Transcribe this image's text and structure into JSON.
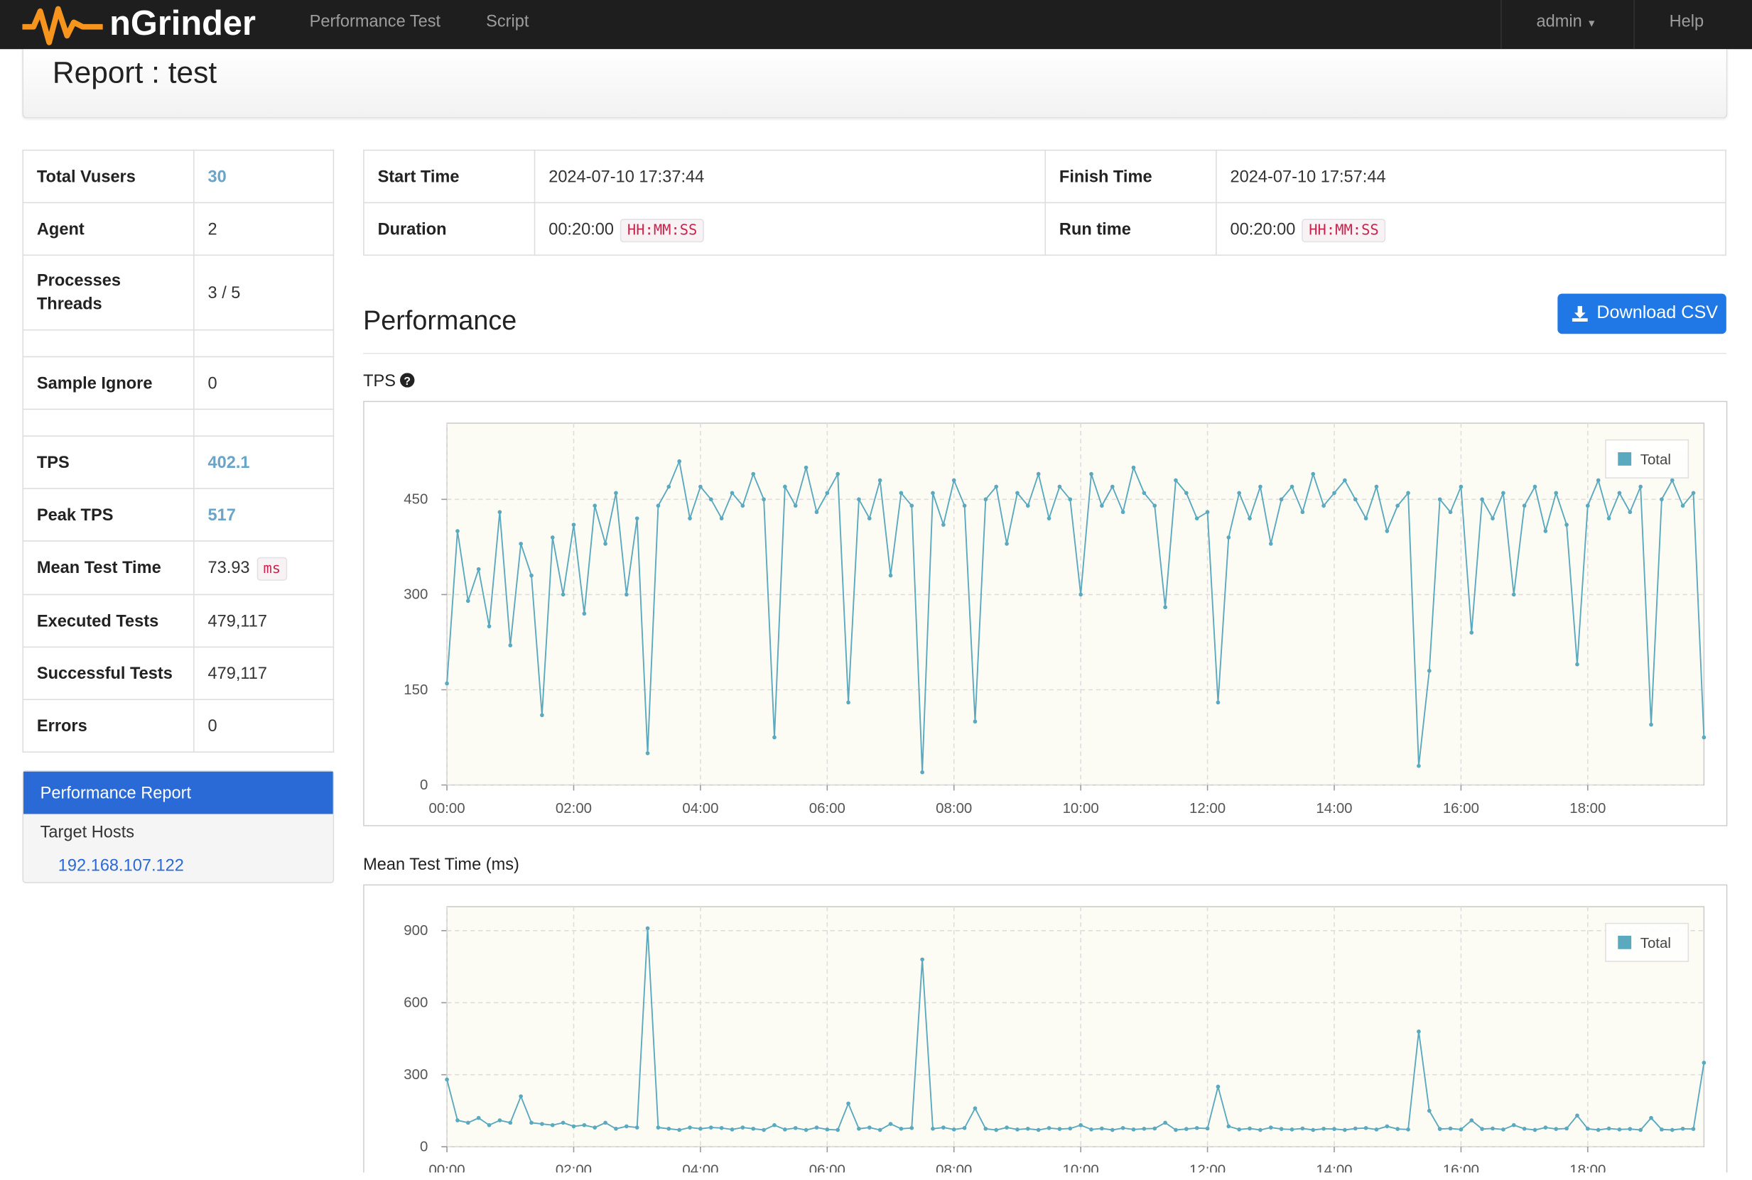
{
  "nav": {
    "brand": "nGrinder",
    "links": [
      "Performance Test",
      "Script"
    ],
    "user": "admin",
    "help": "Help"
  },
  "header": {
    "title": "Report : test"
  },
  "summary": {
    "rows": [
      {
        "label": "Total Vusers",
        "value": "30"
      },
      {
        "label": "Agent",
        "value": "2"
      },
      {
        "label": "Processes",
        "label2": "Threads",
        "value": "3 / 5"
      },
      {
        "label": "Sample Ignore",
        "value": "0"
      },
      {
        "label": "TPS",
        "value": "402.1"
      },
      {
        "label": "Peak TPS",
        "value": "517"
      },
      {
        "label": "Mean Test Time",
        "value": "73.93",
        "unit": "ms"
      },
      {
        "label": "Executed Tests",
        "value": "479,117"
      },
      {
        "label": "Successful Tests",
        "value": "479,117"
      },
      {
        "label": "Errors",
        "value": "0"
      }
    ]
  },
  "menu": {
    "active": "Performance Report",
    "section": "Target Hosts",
    "hosts": [
      "192.168.107.122"
    ]
  },
  "info": {
    "start_label": "Start Time",
    "start": "2024-07-10 17:37:44",
    "finish_label": "Finish Time",
    "finish": "2024-07-10 17:57:44",
    "duration_label": "Duration",
    "duration": "00:20:00",
    "duration_unit": "HH:MM:SS",
    "runtime_label": "Run time",
    "runtime": "00:20:00",
    "runtime_unit": "HH:MM:SS"
  },
  "performance": {
    "title": "Performance",
    "download": "Download CSV"
  },
  "chart_data": [
    {
      "type": "line",
      "title": "TPS",
      "x": [
        0,
        10,
        20,
        30,
        40,
        50,
        60,
        70,
        80,
        90,
        100,
        110,
        120,
        130,
        140,
        150,
        160,
        170,
        180,
        190,
        200,
        210,
        220,
        230,
        240,
        250,
        260,
        270,
        280,
        290,
        300,
        310,
        320,
        330,
        340,
        350,
        360,
        370,
        380,
        390,
        400,
        410,
        420,
        430,
        440,
        450,
        460,
        470,
        480,
        490,
        500,
        510,
        520,
        530,
        540,
        550,
        560,
        570,
        580,
        590,
        600,
        610,
        620,
        630,
        640,
        650,
        660,
        670,
        680,
        690,
        700,
        710,
        720,
        730,
        740,
        750,
        760,
        770,
        780,
        790,
        800,
        810,
        820,
        830,
        840,
        850,
        860,
        870,
        880,
        890,
        900,
        910,
        920,
        930,
        940,
        950,
        960,
        970,
        980,
        990,
        1000,
        1010,
        1020,
        1030,
        1040,
        1050,
        1060,
        1070,
        1080,
        1090,
        1100,
        1110,
        1120,
        1130,
        1140,
        1150,
        1160,
        1170,
        1180,
        1190
      ],
      "series": [
        {
          "name": "Total",
          "color": "#5aa9bf",
          "values": [
            160,
            400,
            290,
            340,
            250,
            430,
            220,
            380,
            330,
            110,
            390,
            300,
            410,
            270,
            440,
            380,
            460,
            300,
            420,
            50,
            440,
            470,
            510,
            420,
            470,
            450,
            420,
            460,
            440,
            490,
            450,
            75,
            470,
            440,
            500,
            430,
            460,
            490,
            130,
            450,
            420,
            480,
            330,
            460,
            440,
            20,
            460,
            410,
            480,
            440,
            100,
            450,
            470,
            380,
            460,
            440,
            490,
            420,
            470,
            450,
            300,
            490,
            440,
            470,
            430,
            500,
            460,
            440,
            280,
            480,
            460,
            420,
            430,
            130,
            390,
            460,
            420,
            470,
            380,
            450,
            470,
            430,
            490,
            440,
            460,
            480,
            450,
            420,
            470,
            400,
            440,
            460,
            30,
            180,
            450,
            430,
            470,
            240,
            450,
            420,
            460,
            300,
            440,
            470,
            400,
            460,
            410,
            190,
            440,
            480,
            420,
            460,
            430,
            470,
            95,
            450,
            480,
            440,
            460,
            75
          ]
        }
      ],
      "xlim": [
        0,
        1190
      ],
      "xticks": [
        {
          "value": 0,
          "label": "00:00"
        },
        {
          "value": 120,
          "label": "02:00"
        },
        {
          "value": 240,
          "label": "04:00"
        },
        {
          "value": 360,
          "label": "06:00"
        },
        {
          "value": 480,
          "label": "08:00"
        },
        {
          "value": 600,
          "label": "10:00"
        },
        {
          "value": 720,
          "label": "12:00"
        },
        {
          "value": 840,
          "label": "14:00"
        },
        {
          "value": 960,
          "label": "16:00"
        },
        {
          "value": 1080,
          "label": "18:00"
        }
      ],
      "ylim": [
        0,
        570
      ],
      "yticks": [
        0,
        150,
        300,
        450
      ],
      "grid": true,
      "legend": "upper right"
    },
    {
      "type": "line",
      "title": "Mean Test Time (ms)",
      "x": [
        0,
        10,
        20,
        30,
        40,
        50,
        60,
        70,
        80,
        90,
        100,
        110,
        120,
        130,
        140,
        150,
        160,
        170,
        180,
        190,
        200,
        210,
        220,
        230,
        240,
        250,
        260,
        270,
        280,
        290,
        300,
        310,
        320,
        330,
        340,
        350,
        360,
        370,
        380,
        390,
        400,
        410,
        420,
        430,
        440,
        450,
        460,
        470,
        480,
        490,
        500,
        510,
        520,
        530,
        540,
        550,
        560,
        570,
        580,
        590,
        600,
        610,
        620,
        630,
        640,
        650,
        660,
        670,
        680,
        690,
        700,
        710,
        720,
        730,
        740,
        750,
        760,
        770,
        780,
        790,
        800,
        810,
        820,
        830,
        840,
        850,
        860,
        870,
        880,
        890,
        900,
        910,
        920,
        930,
        940,
        950,
        960,
        970,
        980,
        990,
        1000,
        1010,
        1020,
        1030,
        1040,
        1050,
        1060,
        1070,
        1080,
        1090,
        1100,
        1110,
        1120,
        1130,
        1140,
        1150,
        1160,
        1170,
        1180,
        1190
      ],
      "series": [
        {
          "name": "Total",
          "color": "#5aa9bf",
          "values": [
            280,
            110,
            100,
            120,
            90,
            110,
            100,
            210,
            100,
            95,
            90,
            100,
            85,
            90,
            80,
            100,
            75,
            85,
            80,
            910,
            80,
            75,
            70,
            80,
            75,
            80,
            78,
            72,
            80,
            75,
            70,
            90,
            72,
            78,
            70,
            80,
            72,
            70,
            180,
            75,
            80,
            70,
            95,
            75,
            78,
            780,
            75,
            80,
            72,
            78,
            160,
            75,
            70,
            80,
            72,
            75,
            70,
            78,
            74,
            76,
            90,
            72,
            76,
            70,
            78,
            72,
            75,
            76,
            100,
            70,
            74,
            78,
            76,
            250,
            85,
            72,
            76,
            70,
            80,
            74,
            72,
            76,
            70,
            75,
            74,
            70,
            76,
            78,
            72,
            85,
            74,
            72,
            480,
            150,
            74,
            76,
            72,
            110,
            74,
            76,
            72,
            90,
            75,
            70,
            80,
            74,
            76,
            130,
            75,
            70,
            76,
            72,
            74,
            70,
            120,
            72,
            70,
            75,
            74,
            350
          ]
        }
      ],
      "xlim": [
        0,
        1190
      ],
      "xticks": [
        {
          "value": 0,
          "label": "00:00"
        },
        {
          "value": 120,
          "label": "02:00"
        },
        {
          "value": 240,
          "label": "04:00"
        },
        {
          "value": 360,
          "label": "06:00"
        },
        {
          "value": 480,
          "label": "08:00"
        },
        {
          "value": 600,
          "label": "10:00"
        },
        {
          "value": 720,
          "label": "12:00"
        },
        {
          "value": 840,
          "label": "14:00"
        },
        {
          "value": 960,
          "label": "16:00"
        },
        {
          "value": 1080,
          "label": "18:00"
        }
      ],
      "ylim": [
        0,
        1000
      ],
      "yticks": [
        0,
        300,
        600,
        900
      ],
      "grid": true,
      "legend": "upper right"
    }
  ]
}
